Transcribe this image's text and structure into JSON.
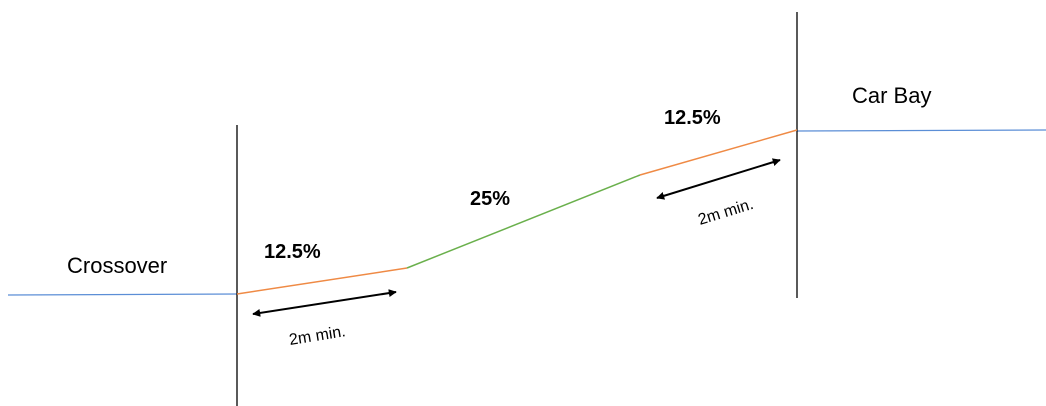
{
  "labels": {
    "left_zone": "Crossover",
    "right_zone": "Car Bay",
    "grade_lower": "12.5%",
    "grade_middle": "25%",
    "grade_upper": "12.5%",
    "min_length_lower": "2m min.",
    "min_length_upper": "2m min."
  },
  "colors": {
    "ground_line": "#5b8ed6",
    "transition_segment": "#ef8a45",
    "main_segment": "#6ab04c",
    "boundary_line": "#000000",
    "dimension_arrow": "#000000"
  }
}
